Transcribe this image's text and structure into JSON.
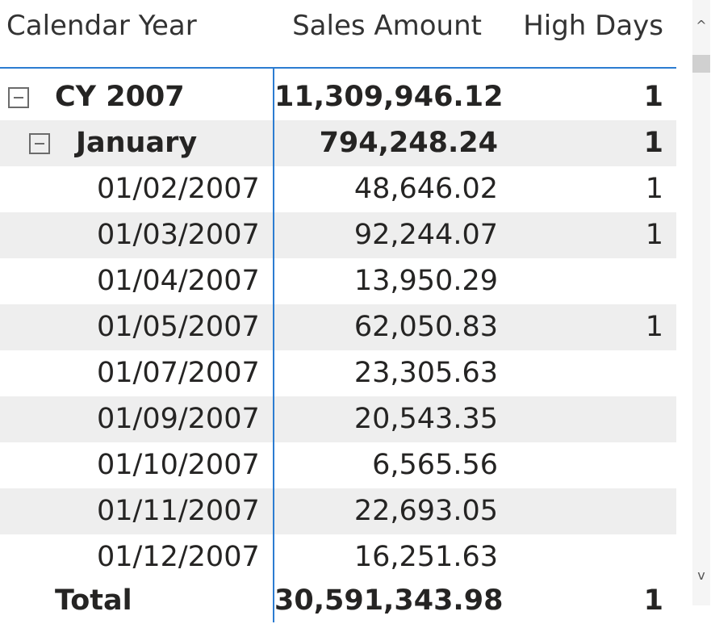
{
  "columns": {
    "calendar_year": "Calendar Year",
    "sales_amount": "Sales Amount",
    "high_days": "High Days"
  },
  "rows": [
    {
      "label": "CY 2007",
      "sales": "11,309,946.12",
      "high": "1",
      "level": 0,
      "expanded": true
    },
    {
      "label": "January",
      "sales": "794,248.24",
      "high": "1",
      "level": 1,
      "expanded": true
    },
    {
      "label": "01/02/2007",
      "sales": "48,646.02",
      "high": "1",
      "level": 2
    },
    {
      "label": "01/03/2007",
      "sales": "92,244.07",
      "high": "1",
      "level": 2
    },
    {
      "label": "01/04/2007",
      "sales": "13,950.29",
      "high": "",
      "level": 2
    },
    {
      "label": "01/05/2007",
      "sales": "62,050.83",
      "high": "1",
      "level": 2
    },
    {
      "label": "01/07/2007",
      "sales": "23,305.63",
      "high": "",
      "level": 2
    },
    {
      "label": "01/09/2007",
      "sales": "20,543.35",
      "high": "",
      "level": 2
    },
    {
      "label": "01/10/2007",
      "sales": "6,565.56",
      "high": "",
      "level": 2
    },
    {
      "label": "01/11/2007",
      "sales": "22,693.05",
      "high": "",
      "level": 2
    },
    {
      "label": "01/12/2007",
      "sales": "16,251.63",
      "high": "",
      "level": 2
    }
  ],
  "total": {
    "label": "Total",
    "sales": "30,591,343.98",
    "high": "1"
  },
  "scrollbar": {
    "up_glyph": "^",
    "down_glyph": "v"
  },
  "colors": {
    "accent": "#2c7cd1",
    "row_alt": "#eeeeee"
  }
}
